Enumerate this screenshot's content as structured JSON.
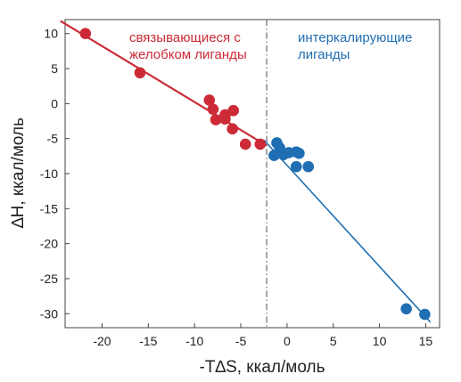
{
  "chart_data": {
    "type": "scatter",
    "xlabel": "-T∆S, ккал/моль",
    "ylabel": "∆H, ккал/моль",
    "xlim": [
      -24,
      16.5
    ],
    "ylim": [
      -32,
      12
    ],
    "x_ticks": [
      -20,
      -15,
      -10,
      -5,
      0,
      5,
      10,
      15
    ],
    "x_tick_labels": [
      "-20",
      "-15",
      "-10",
      "-5",
      "0",
      "5",
      "10",
      "15"
    ],
    "y_ticks": [
      10,
      5,
      0,
      -5,
      -10,
      -15,
      -20,
      -25,
      -30
    ],
    "y_tick_labels": [
      "10",
      "5",
      "0",
      "-5",
      "-10",
      "-15",
      "-20",
      "-25",
      "-30"
    ],
    "grid": false,
    "divider_x": -2.2,
    "series": [
      {
        "name": "связывающиеся с желобком лиганды",
        "color": "#cc2a36",
        "points": [
          {
            "x": -21.8,
            "y": 10.0
          },
          {
            "x": -15.9,
            "y": 4.4
          },
          {
            "x": -8.4,
            "y": 0.5
          },
          {
            "x": -8.0,
            "y": -0.8
          },
          {
            "x": -7.7,
            "y": -2.3
          },
          {
            "x": -6.7,
            "y": -2.2
          },
          {
            "x": -6.7,
            "y": -1.6
          },
          {
            "x": -5.8,
            "y": -1.0
          },
          {
            "x": -5.9,
            "y": -3.6
          },
          {
            "x": -4.5,
            "y": -5.8
          },
          {
            "x": -2.9,
            "y": -5.8
          }
        ],
        "fit": {
          "x": [
            -24.5,
            -2.2
          ],
          "y": [
            11.8,
            -6.0
          ]
        }
      },
      {
        "name": "интеркалирующие лиганды",
        "color": "#1f6eb3",
        "points": [
          {
            "x": -1.4,
            "y": -7.4
          },
          {
            "x": -1.1,
            "y": -5.6
          },
          {
            "x": -0.8,
            "y": -6.3
          },
          {
            "x": -0.4,
            "y": -7.3
          },
          {
            "x": 0.2,
            "y": -7.0
          },
          {
            "x": 1.0,
            "y": -6.9
          },
          {
            "x": 1.3,
            "y": -7.1
          },
          {
            "x": 1.0,
            "y": -9.0
          },
          {
            "x": 2.3,
            "y": -9.0
          },
          {
            "x": 12.9,
            "y": -29.3
          },
          {
            "x": 14.9,
            "y": -30.1
          }
        ],
        "fit": {
          "x": [
            -2.5,
            15.5
          ],
          "y": [
            -5.2,
            -31.2
          ]
        }
      }
    ]
  }
}
